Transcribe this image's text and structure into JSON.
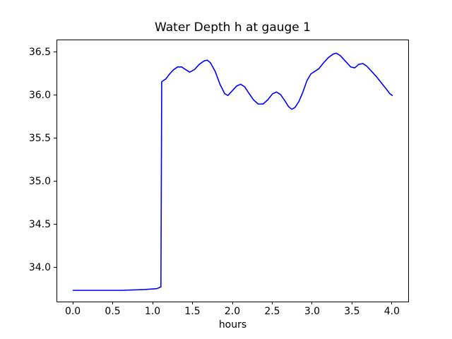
{
  "figure": {
    "background_color": "#ffffff",
    "frame_color": "#000000",
    "text_color": "#000000"
  },
  "chart_data": {
    "type": "line",
    "title": "Water Depth h at gauge 1",
    "xlabel": "hours",
    "ylabel": "",
    "xlim": [
      -0.2,
      4.2
    ],
    "ylim": [
      33.61,
      36.64
    ],
    "xticks": [
      0.0,
      0.5,
      1.0,
      1.5,
      2.0,
      2.5,
      3.0,
      3.5,
      4.0
    ],
    "xtick_labels": [
      "0.0",
      "0.5",
      "1.0",
      "1.5",
      "2.0",
      "2.5",
      "3.0",
      "3.5",
      "4.0"
    ],
    "yticks": [
      34.0,
      34.5,
      35.0,
      35.5,
      36.0,
      36.5
    ],
    "ytick_labels": [
      "34.0",
      "34.5",
      "35.0",
      "35.5",
      "36.0",
      "36.5"
    ],
    "grid": false,
    "legend": null,
    "line_color": "#0000ff",
    "line_width": 1.6,
    "series": [
      {
        "x": [
          0.0,
          0.3,
          0.6,
          0.9,
          1.05,
          1.1,
          1.11,
          1.16,
          1.21,
          1.26,
          1.31,
          1.36,
          1.41,
          1.46,
          1.52,
          1.58,
          1.64,
          1.68,
          1.72,
          1.78,
          1.84,
          1.9,
          1.94,
          2.0,
          2.05,
          2.1,
          2.15,
          2.2,
          2.26,
          2.32,
          2.38,
          2.44,
          2.5,
          2.55,
          2.6,
          2.66,
          2.7,
          2.74,
          2.78,
          2.83,
          2.88,
          2.93,
          2.98,
          3.03,
          3.08,
          3.14,
          3.2,
          3.26,
          3.3,
          3.35,
          3.42,
          3.48,
          3.53,
          3.58,
          3.63,
          3.68,
          3.74,
          3.8,
          3.86,
          3.92,
          3.97,
          4.0
        ],
        "y": [
          33.74,
          33.74,
          33.74,
          33.75,
          33.76,
          33.78,
          36.16,
          36.19,
          36.25,
          36.3,
          36.33,
          36.33,
          36.3,
          36.27,
          36.3,
          36.36,
          36.4,
          36.41,
          36.38,
          36.28,
          36.13,
          36.02,
          36.0,
          36.06,
          36.11,
          36.13,
          36.1,
          36.03,
          35.95,
          35.9,
          35.9,
          35.95,
          36.02,
          36.04,
          36.01,
          35.93,
          35.87,
          35.84,
          35.86,
          35.93,
          36.04,
          36.17,
          36.25,
          36.28,
          36.31,
          36.38,
          36.44,
          36.48,
          36.49,
          36.46,
          36.39,
          36.33,
          36.32,
          36.36,
          36.37,
          36.34,
          36.28,
          36.22,
          36.15,
          36.08,
          36.02,
          36.0
        ]
      }
    ]
  }
}
